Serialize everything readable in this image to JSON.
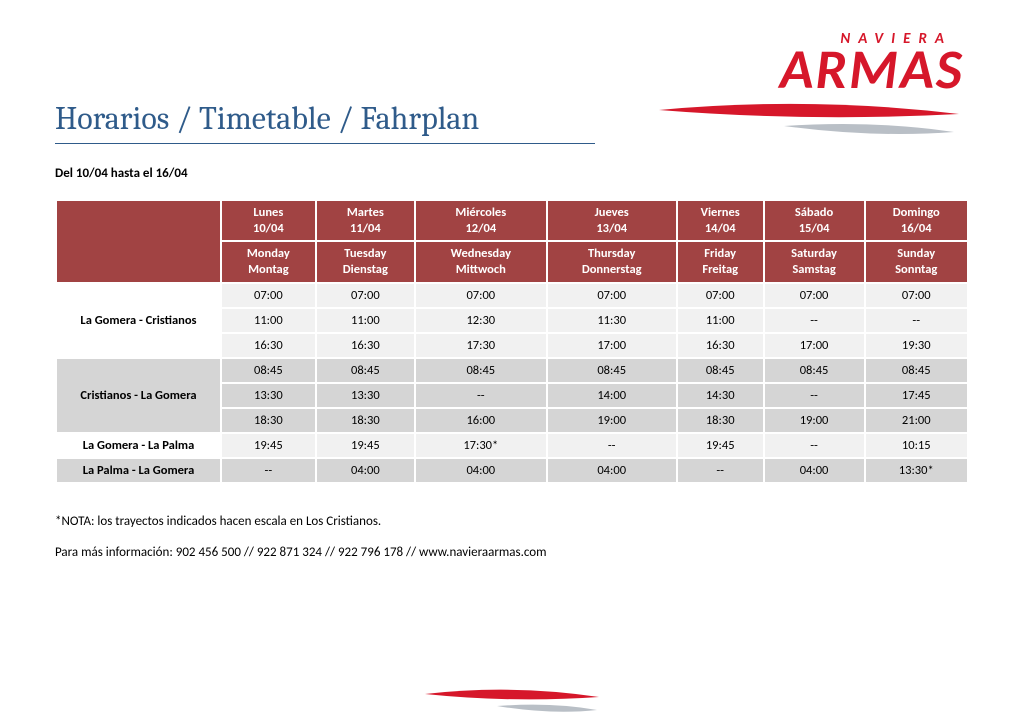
{
  "brand": {
    "top": "NAVIERA",
    "main": "ARMAS",
    "color": "#d6172a",
    "swoosh_red": "#d6172a",
    "swoosh_grey": "#9ca3af"
  },
  "title": "Horarios / Timetable / Fahrplan",
  "title_color": "#2f5b8a",
  "date_range": "Del  10/04 hasta el 16/04",
  "header_bg": "#a14343",
  "band_light": "#f1f1f1",
  "band_dark": "#d5d5d5",
  "days": [
    {
      "es": "Lunes",
      "date": "10/04",
      "en": "Monday",
      "de": "Montag"
    },
    {
      "es": "Martes",
      "date": "11/04",
      "en": "Tuesday",
      "de": "Dienstag"
    },
    {
      "es": "Miércoles",
      "date": "12/04",
      "en": "Wednesday",
      "de": "Mittwoch"
    },
    {
      "es": "Jueves",
      "date": "13/04",
      "en": "Thursday",
      "de": "Donnerstag"
    },
    {
      "es": "Viernes",
      "date": "14/04",
      "en": "Friday",
      "de": "Freitag"
    },
    {
      "es": "Sábado",
      "date": "15/04",
      "en": "Saturday",
      "de": "Samstag"
    },
    {
      "es": "Domingo",
      "date": "16/04",
      "en": "Sunday",
      "de": "Sonntag"
    }
  ],
  "routes": [
    {
      "name": "La Gomera - Cristianos",
      "rows": [
        [
          "07:00",
          "07:00",
          "07:00",
          "07:00",
          "07:00",
          "07:00",
          "07:00"
        ],
        [
          "11:00",
          "11:00",
          "12:30",
          "11:30",
          "11:00",
          "--",
          "--"
        ],
        [
          "16:30",
          "16:30",
          "17:30",
          "17:00",
          "16:30",
          "17:00",
          "19:30"
        ]
      ],
      "shade": "light"
    },
    {
      "name": "Cristianos - La Gomera",
      "rows": [
        [
          "08:45",
          "08:45",
          "08:45",
          "08:45",
          "08:45",
          "08:45",
          "08:45"
        ],
        [
          "13:30",
          "13:30",
          "--",
          "14:00",
          "14:30",
          "--",
          "17:45"
        ],
        [
          "18:30",
          "18:30",
          "16:00",
          "19:00",
          "18:30",
          "19:00",
          "21:00"
        ]
      ],
      "shade": "dark"
    },
    {
      "name": "La Gomera - La Palma",
      "rows": [
        [
          "19:45",
          "19:45",
          "17:30*",
          "--",
          "19:45",
          "--",
          "10:15"
        ]
      ],
      "shade": "light"
    },
    {
      "name": "La Palma - La Gomera",
      "rows": [
        [
          "--",
          "04:00",
          "04:00",
          "04:00",
          "--",
          "04:00",
          "13:30*"
        ]
      ],
      "shade": "dark"
    }
  ],
  "note": "*NOTA: los trayectos indicados hacen escala en Los Cristianos.",
  "info": "Para más información: 902 456 500 // 922 871 324 // 922 796 178 // www.navieraarmas.com"
}
